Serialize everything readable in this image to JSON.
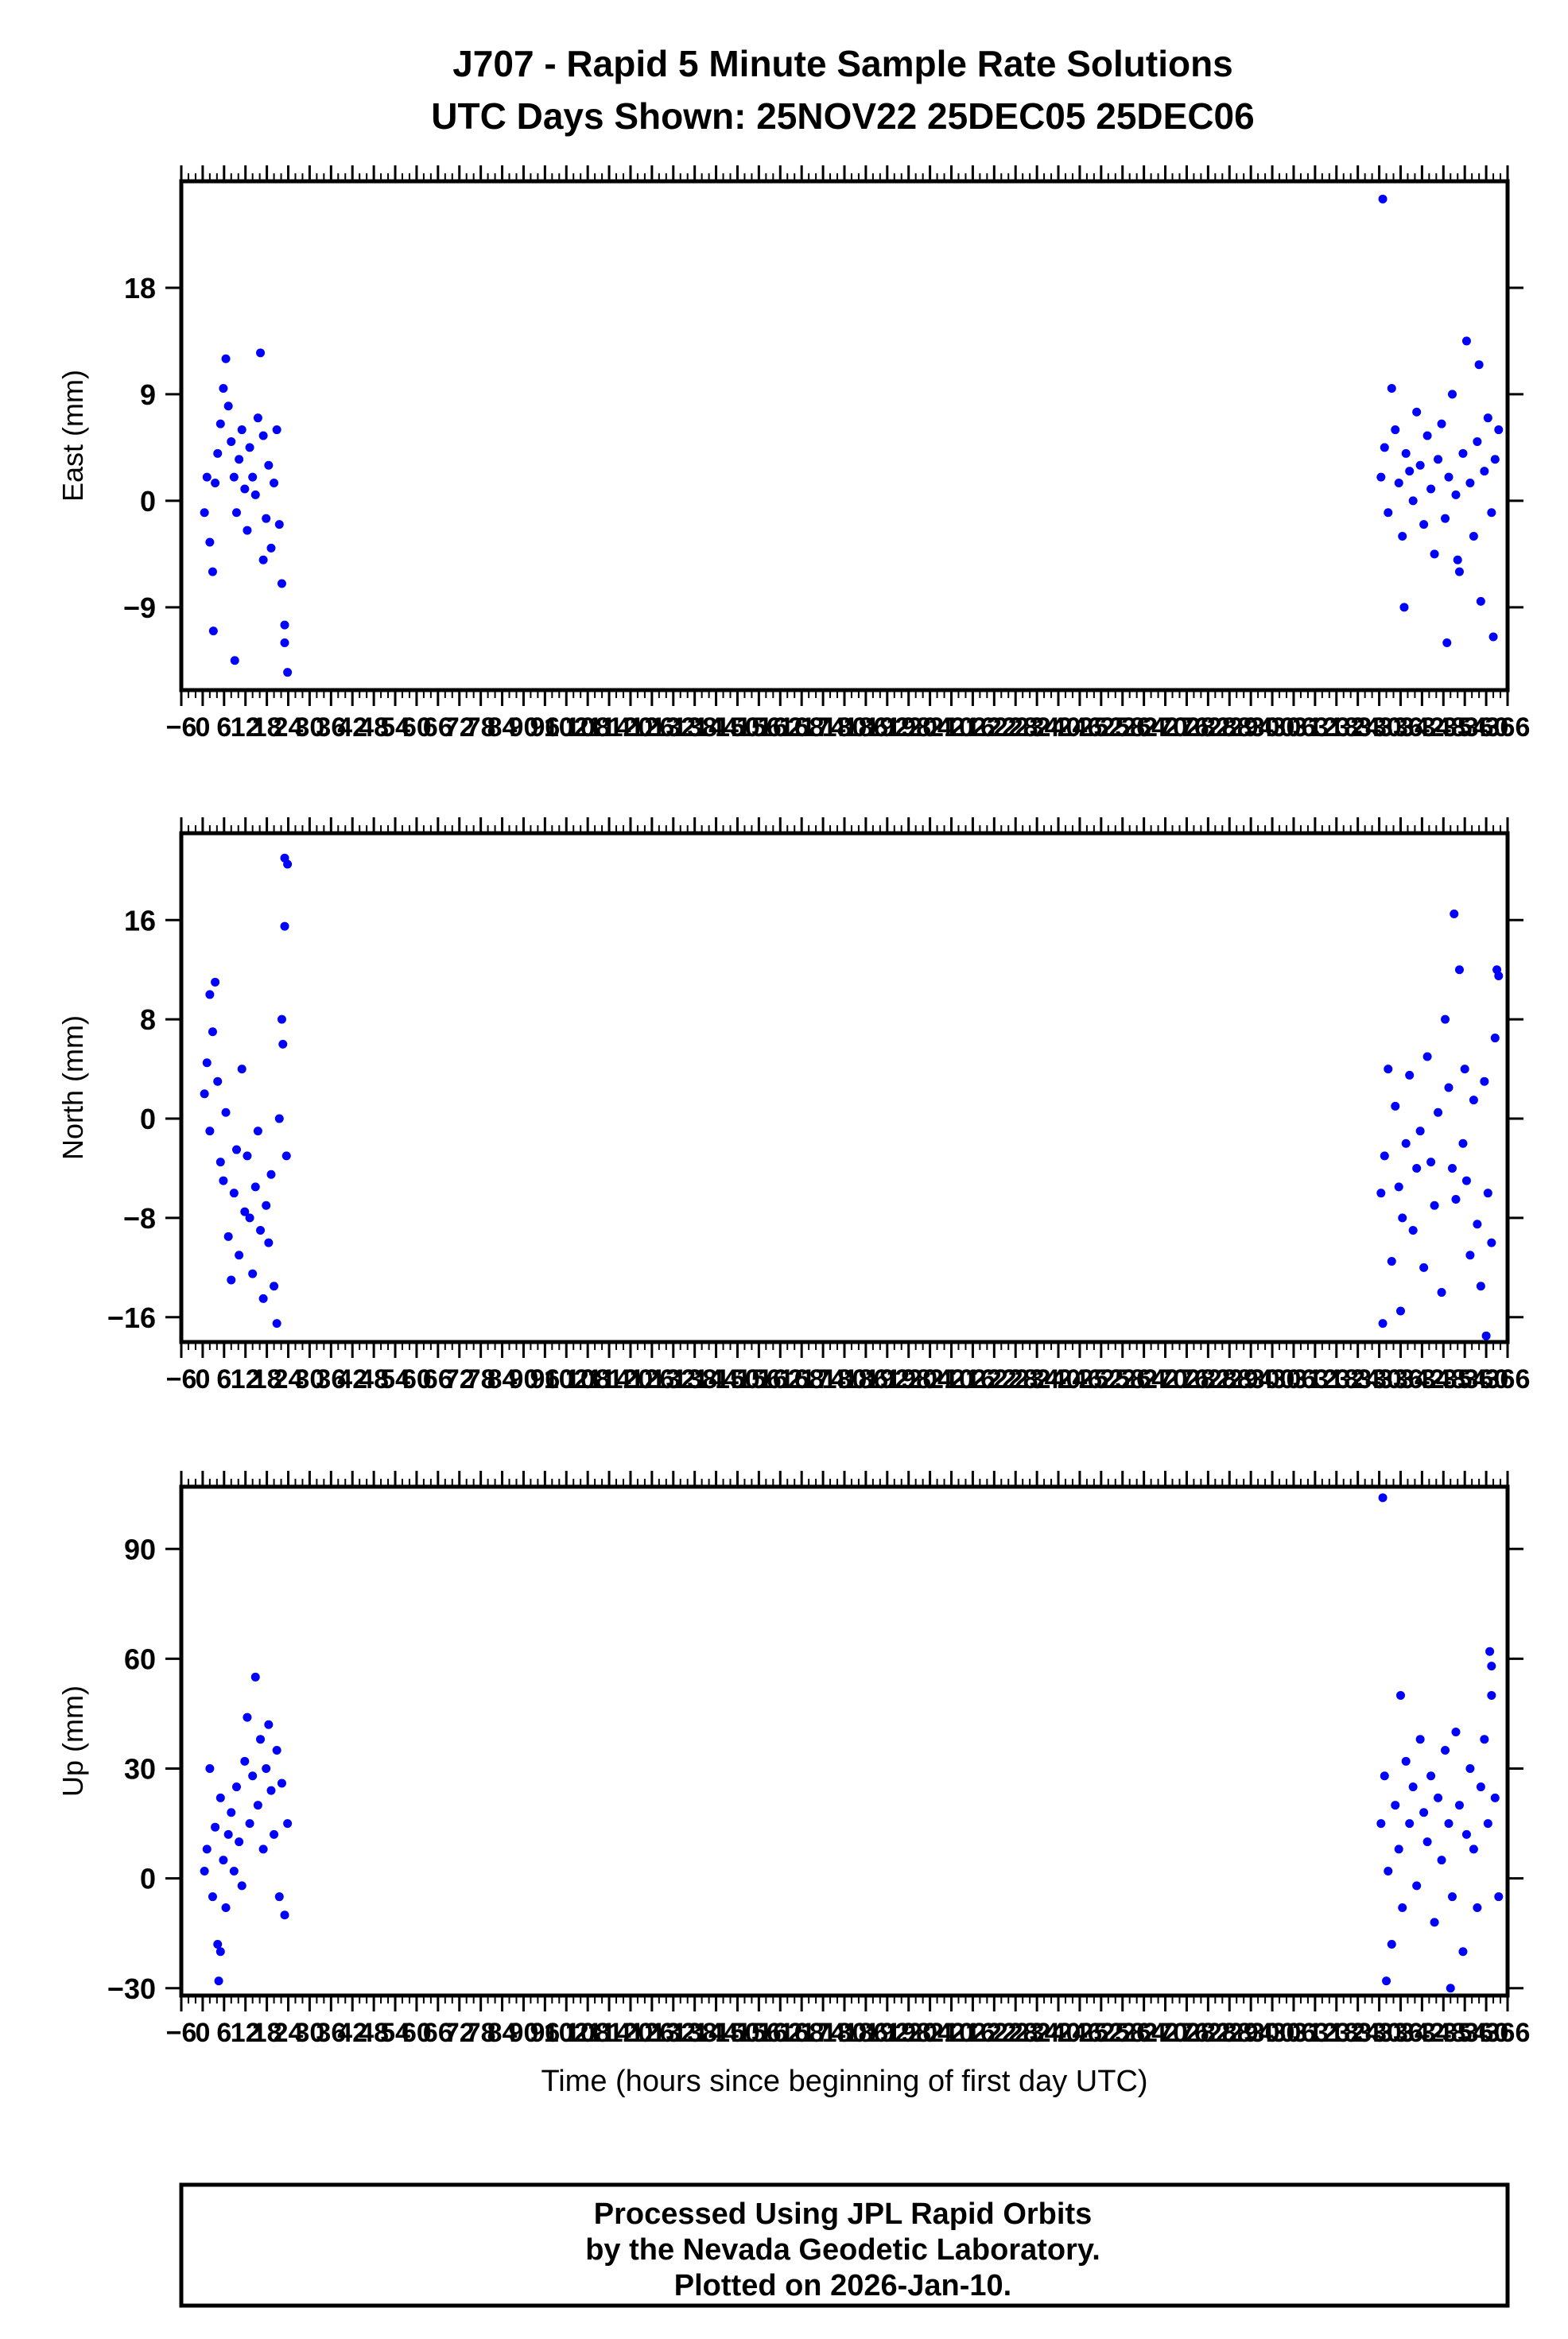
{
  "title": {
    "line1": "J707 - Rapid 5 Minute Sample Rate Solutions",
    "line2": "UTC Days Shown:  25NOV22 25DEC05 25DEC06"
  },
  "footer": {
    "line1": "Processed Using JPL Rapid Orbits",
    "line2": "by the Nevada Geodetic Laboratory.",
    "line3": "Plotted on 2026-Jan-10."
  },
  "colors": {
    "points": "#0000ff",
    "frame": "#000000"
  },
  "chart_data": [
    {
      "type": "scatter",
      "ylabel": "East (mm)",
      "xlabel": "",
      "xlim": [
        -6,
        366
      ],
      "ylim": [
        -16,
        27
      ],
      "yticks": [
        -9,
        0,
        9,
        18
      ],
      "x_ticks": [
        -6,
        0,
        6,
        12,
        18,
        24,
        30,
        36,
        42,
        48,
        54,
        60,
        66,
        72,
        78,
        84,
        90,
        96,
        102,
        108,
        114,
        120,
        126,
        132,
        138,
        144,
        150,
        156,
        162,
        168,
        174,
        180,
        186,
        192,
        198,
        204,
        210,
        216,
        222,
        228,
        234,
        240,
        246,
        252,
        258,
        264,
        270,
        276,
        282,
        288,
        294,
        300,
        306,
        312,
        318,
        324,
        330,
        336,
        342,
        348,
        354,
        360,
        366
      ],
      "series": [
        {
          "x": [
            0.5,
            1.2,
            2.0,
            2.8,
            3.5,
            4.2,
            5.0,
            5.8,
            6.5,
            7.2,
            8.0,
            8.8,
            9.5,
            10.2,
            11.0,
            11.8,
            12.5,
            13.2,
            14.0,
            14.8,
            15.5,
            16.2,
            17.0,
            17.8,
            18.5,
            19.2,
            20.0,
            20.8,
            21.5,
            22.2,
            23.0,
            23.8,
            3.0,
            9.0,
            17.0,
            23.0,
            330.5,
            331.5,
            332.5,
            333.5,
            334.5,
            335.5,
            336.5,
            337.5,
            338.5,
            339.5,
            340.5,
            341.5,
            342.5,
            343.5,
            344.5,
            345.5,
            346.5,
            347.5,
            348.5,
            349.5,
            350.5,
            351.5,
            352.5,
            353.5,
            354.5,
            355.5,
            356.5,
            357.5,
            358.5,
            359.5,
            360.5,
            361.5,
            362.5,
            363.5,
            331.0,
            349.0,
            337.0,
            352.0,
            358.0,
            362.0
          ],
          "y": [
            -1.0,
            2.0,
            -3.5,
            -6.0,
            1.5,
            4.0,
            6.5,
            9.5,
            12.0,
            8.0,
            5.0,
            2.0,
            -1.0,
            3.5,
            6.0,
            1.0,
            -2.5,
            4.5,
            2.0,
            0.5,
            7.0,
            12.5,
            5.5,
            -1.5,
            3.0,
            -4.0,
            1.5,
            6.0,
            -2.0,
            -7.0,
            -10.5,
            -14.5,
            -11.0,
            -13.5,
            -5.0,
            -12.0,
            2.0,
            4.5,
            -1.0,
            9.5,
            6.0,
            1.5,
            -3.0,
            4.0,
            2.5,
            0.0,
            7.5,
            3.0,
            -2.0,
            5.5,
            1.0,
            -4.5,
            3.5,
            6.5,
            -1.5,
            2.0,
            9.0,
            0.5,
            -6.0,
            4.0,
            13.5,
            1.5,
            -3.0,
            5.0,
            -8.5,
            2.5,
            7.0,
            -1.0,
            3.5,
            6.0,
            25.5,
            -12.0,
            -9.0,
            -5.0,
            11.5,
            -11.5
          ]
        }
      ]
    },
    {
      "type": "scatter",
      "ylabel": "North (mm)",
      "xlabel": "",
      "xlim": [
        -6,
        366
      ],
      "ylim": [
        -18,
        23
      ],
      "yticks": [
        -16,
        -8,
        0,
        8,
        16
      ],
      "x_ticks": [
        -6,
        0,
        6,
        12,
        18,
        24,
        30,
        36,
        42,
        48,
        54,
        60,
        66,
        72,
        78,
        84,
        90,
        96,
        102,
        108,
        114,
        120,
        126,
        132,
        138,
        144,
        150,
        156,
        162,
        168,
        174,
        180,
        186,
        192,
        198,
        204,
        210,
        216,
        222,
        228,
        234,
        240,
        246,
        252,
        258,
        264,
        270,
        276,
        282,
        288,
        294,
        300,
        306,
        312,
        318,
        324,
        330,
        336,
        342,
        348,
        354,
        360,
        366
      ],
      "series": [
        {
          "x": [
            0.5,
            1.2,
            2.0,
            2.8,
            3.5,
            4.2,
            5.0,
            5.8,
            6.5,
            7.2,
            8.0,
            8.8,
            9.5,
            10.2,
            11.0,
            11.8,
            12.5,
            13.2,
            14.0,
            14.8,
            15.5,
            16.2,
            17.0,
            17.8,
            18.5,
            19.2,
            20.0,
            20.8,
            21.5,
            22.2,
            23.0,
            23.8,
            23.0,
            22.5,
            23.5,
            2.0,
            330.5,
            331.5,
            332.5,
            333.5,
            334.5,
            335.5,
            336.5,
            337.5,
            338.5,
            339.5,
            340.5,
            341.5,
            342.5,
            343.5,
            344.5,
            345.5,
            346.5,
            347.5,
            348.5,
            349.5,
            350.5,
            351.5,
            352.5,
            353.5,
            354.5,
            355.5,
            356.5,
            357.5,
            358.5,
            359.5,
            360.5,
            361.5,
            362.5,
            363.5,
            331.0,
            336.0,
            351.0,
            354.0,
            360.0,
            363.0
          ],
          "y": [
            2.0,
            4.5,
            -1.0,
            7.0,
            11.0,
            3.0,
            -3.5,
            -5.0,
            0.5,
            -9.5,
            -13.0,
            -6.0,
            -2.5,
            -11.0,
            4.0,
            -7.5,
            -3.0,
            -8.0,
            -12.5,
            -5.5,
            -1.0,
            -9.0,
            -14.5,
            -7.0,
            -10.0,
            -4.5,
            -13.5,
            -16.5,
            0.0,
            8.0,
            15.5,
            20.5,
            21.0,
            6.0,
            -3.0,
            10.0,
            -6.0,
            -3.0,
            4.0,
            -11.5,
            1.0,
            -5.5,
            -8.0,
            -2.0,
            3.5,
            -9.0,
            -4.0,
            -1.0,
            -12.0,
            5.0,
            -3.5,
            -7.0,
            0.5,
            -14.0,
            8.0,
            2.5,
            -4.0,
            -6.5,
            12.0,
            -2.0,
            -5.0,
            -11.0,
            1.5,
            -8.5,
            -13.5,
            3.0,
            -6.0,
            -10.0,
            6.5,
            11.5,
            -16.5,
            -15.5,
            16.5,
            4.0,
            -17.5,
            12.0
          ]
        }
      ]
    },
    {
      "type": "scatter",
      "ylabel": "Up (mm)",
      "xlabel": "Time (hours since beginning of first day UTC)",
      "xlim": [
        -6,
        366
      ],
      "ylim": [
        -32,
        107
      ],
      "yticks": [
        -30,
        0,
        30,
        60,
        90
      ],
      "x_ticks": [
        -6,
        0,
        6,
        12,
        18,
        24,
        30,
        36,
        42,
        48,
        54,
        60,
        66,
        72,
        78,
        84,
        90,
        96,
        102,
        108,
        114,
        120,
        126,
        132,
        138,
        144,
        150,
        156,
        162,
        168,
        174,
        180,
        186,
        192,
        198,
        204,
        210,
        216,
        222,
        228,
        234,
        240,
        246,
        252,
        258,
        264,
        270,
        276,
        282,
        288,
        294,
        300,
        306,
        312,
        318,
        324,
        330,
        336,
        342,
        348,
        354,
        360,
        366
      ],
      "series": [
        {
          "x": [
            0.5,
            1.2,
            2.0,
            2.8,
            3.5,
            4.2,
            5.0,
            5.8,
            6.5,
            7.2,
            8.0,
            8.8,
            9.5,
            10.2,
            11.0,
            11.8,
            12.5,
            13.2,
            14.0,
            14.8,
            15.5,
            16.2,
            17.0,
            17.8,
            18.5,
            19.2,
            20.0,
            20.8,
            21.5,
            22.2,
            23.0,
            23.8,
            4.5,
            5.0,
            330.5,
            331.5,
            332.5,
            333.5,
            334.5,
            335.5,
            336.5,
            337.5,
            338.5,
            339.5,
            340.5,
            341.5,
            342.5,
            343.5,
            344.5,
            345.5,
            346.5,
            347.5,
            348.5,
            349.5,
            350.5,
            351.5,
            352.5,
            353.5,
            354.5,
            355.5,
            356.5,
            357.5,
            358.5,
            359.5,
            360.5,
            361.5,
            362.5,
            363.5,
            331.0,
            332.0,
            336.0,
            350.0,
            361.0,
            361.5
          ],
          "y": [
            2.0,
            8.0,
            30.0,
            -5.0,
            14.0,
            -18.0,
            22.0,
            5.0,
            -8.0,
            12.0,
            18.0,
            2.0,
            25.0,
            10.0,
            -2.0,
            32.0,
            44.0,
            15.0,
            28.0,
            55.0,
            20.0,
            38.0,
            8.0,
            30.0,
            42.0,
            24.0,
            12.0,
            35.0,
            -5.0,
            26.0,
            -10.0,
            15.0,
            -28.0,
            -20.0,
            15.0,
            28.0,
            2.0,
            -18.0,
            20.0,
            8.0,
            -8.0,
            32.0,
            15.0,
            25.0,
            -2.0,
            38.0,
            18.0,
            10.0,
            28.0,
            -12.0,
            22.0,
            5.0,
            35.0,
            15.0,
            -5.0,
            40.0,
            20.0,
            -20.0,
            12.0,
            30.0,
            8.0,
            -8.0,
            25.0,
            38.0,
            15.0,
            50.0,
            22.0,
            -5.0,
            104.0,
            -28.0,
            50.0,
            -30.0,
            62.0,
            58.0
          ]
        }
      ]
    }
  ]
}
